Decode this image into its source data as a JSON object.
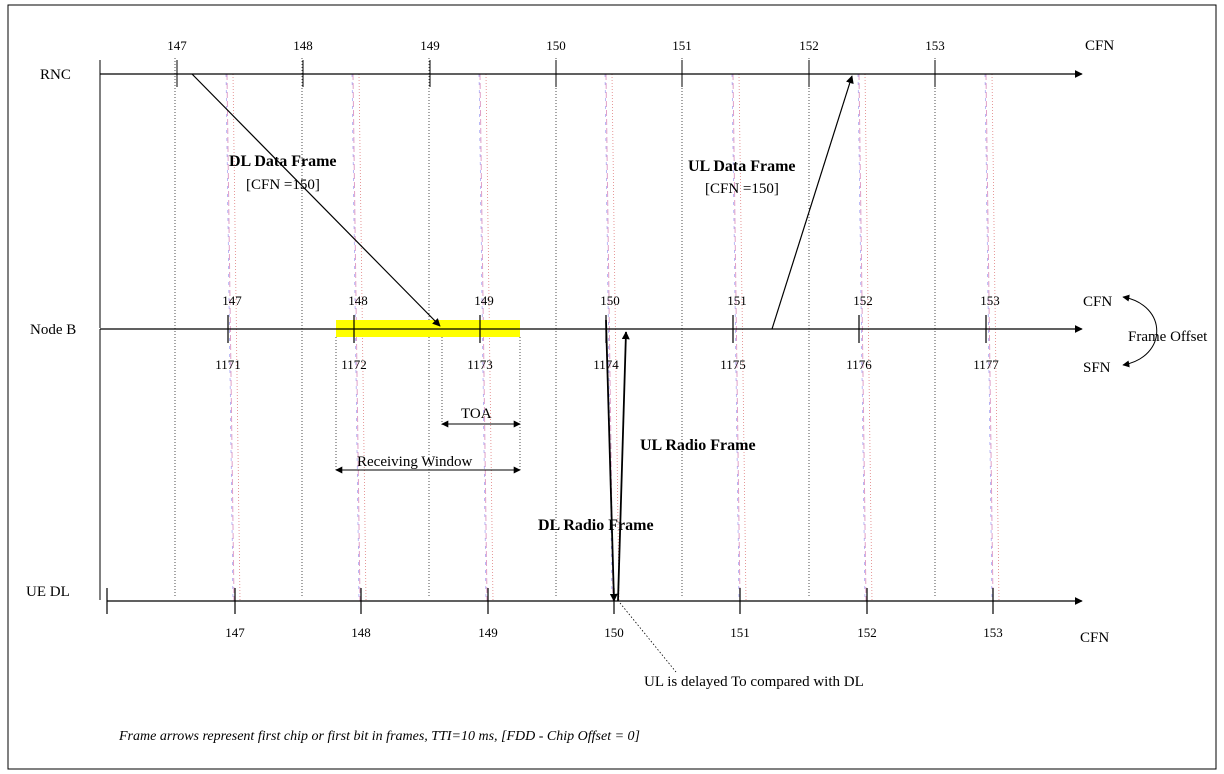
{
  "rows": {
    "rnc": "RNC",
    "nodeb": "Node B",
    "ue": "UE DL"
  },
  "right_labels": {
    "rnc_cfn": "CFN",
    "nodeb_cfn": "CFN",
    "nodeb_sfn": "SFN",
    "ue_cfn": "CFN",
    "frame_offset": "Frame Offset"
  },
  "rnc_cfn_numbers": [
    "147",
    "148",
    "149",
    "150",
    "151",
    "152",
    "153"
  ],
  "nodeb_cfn_numbers": [
    "147",
    "148",
    "149",
    "150",
    "151",
    "152",
    "153"
  ],
  "nodeb_sfn_numbers": [
    "1171",
    "1172",
    "1173",
    "1174",
    "1175",
    "1176",
    "1177"
  ],
  "ue_cfn_numbers": [
    "147",
    "148",
    "149",
    "150",
    "151",
    "152",
    "153"
  ],
  "annotations": {
    "dl_data_frame": "DL Data Frame",
    "dl_data_frame_cfn": "[CFN =150]",
    "ul_data_frame": "UL Data Frame",
    "ul_data_frame_cfn": "[CFN =150]",
    "toa": "TOA",
    "receiving_window": "Receiving Window",
    "ul_radio_frame": "UL Radio Frame",
    "dl_radio_frame": "DL Radio Frame",
    "ul_delayed": "UL is delayed To compared with DL"
  },
  "footnote": "Frame arrows represent first chip or first bit in frames, TTI=10 ms, [FDD - Chip Offset = 0]",
  "colors": {
    "receiving_window_highlight": "#ffff00",
    "pink_dash": "#e0a0c8",
    "blue_dash": "#8c8cf0",
    "red_dot": "#e08080"
  }
}
